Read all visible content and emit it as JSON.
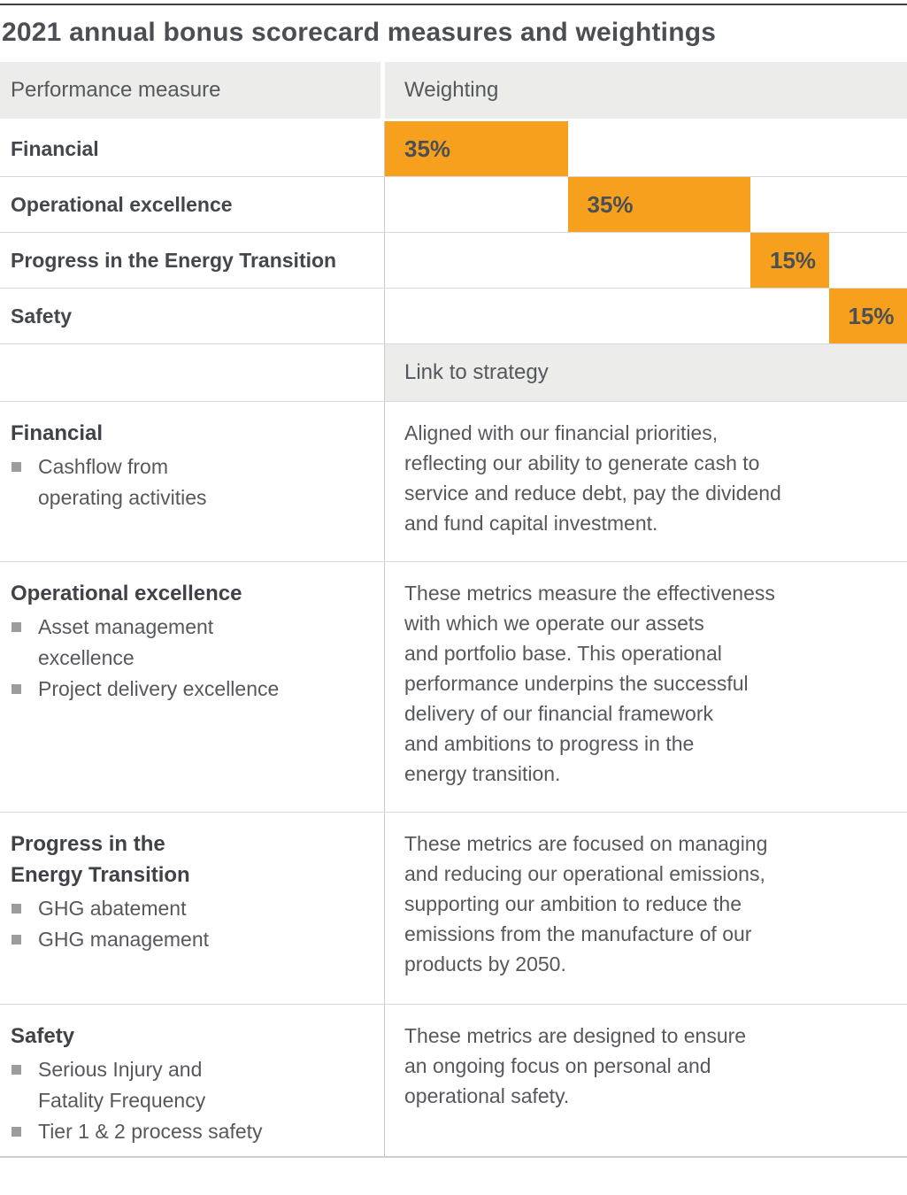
{
  "title": "2021 annual bonus scorecard measures and weightings",
  "colors": {
    "accent_orange": "#F6A01E",
    "header_bg": "#ECECEB",
    "row_border": "#D8D8D8",
    "bullet_gray": "#9C9C9C",
    "text_dark": "#43464A",
    "text_body": "#56585C"
  },
  "table": {
    "performance_header": "Performance measure",
    "weighting_header": "Weighting",
    "link_header": "Link to strategy"
  },
  "chart_data": {
    "type": "bar",
    "subtype": "horizontal-offset-stacked",
    "title": "2021 annual bonus scorecard measures and weightings",
    "xlabel": "Weighting",
    "ylabel": "Performance measure",
    "categories": [
      "Financial",
      "Operational excellence",
      "Progress in the Energy Transition",
      "Safety"
    ],
    "values": [
      35,
      35,
      15,
      15
    ],
    "labels": [
      "35%",
      "35%",
      "15%",
      "15%"
    ],
    "bar_offsets": [
      0,
      35,
      70,
      85
    ],
    "unit": "%",
    "xlim": [
      0,
      100
    ],
    "bar_color": "#F6A01E",
    "grid": false,
    "legend": false
  },
  "strategy_sections": [
    {
      "heading": "Financial",
      "bullets": [
        "Cashflow from\noperating activities"
      ],
      "description": "Aligned with our financial priorities,\nreflecting our ability to generate cash to\nservice and reduce debt, pay the dividend\nand fund capital investment."
    },
    {
      "heading": "Operational excellence",
      "bullets": [
        "Asset management\nexcellence",
        "Project delivery excellence"
      ],
      "description": "These metrics measure the effectiveness\nwith which we operate our assets\nand portfolio base. This operational\nperformance underpins the successful\ndelivery of our financial framework\nand ambitions to progress in the\nenergy transition."
    },
    {
      "heading": "Progress in the\nEnergy Transition",
      "bullets": [
        "GHG abatement",
        "GHG management"
      ],
      "description": "These metrics are focused on managing\nand reducing our operational emissions,\nsupporting our ambition to reduce the\nemissions from the manufacture of our\nproducts by 2050."
    },
    {
      "heading": "Safety",
      "bullets": [
        "Serious Injury and\nFatality Frequency",
        "Tier 1 & 2 process safety"
      ],
      "description": "These metrics are designed to ensure\nan ongoing focus on personal and\noperational safety."
    }
  ]
}
